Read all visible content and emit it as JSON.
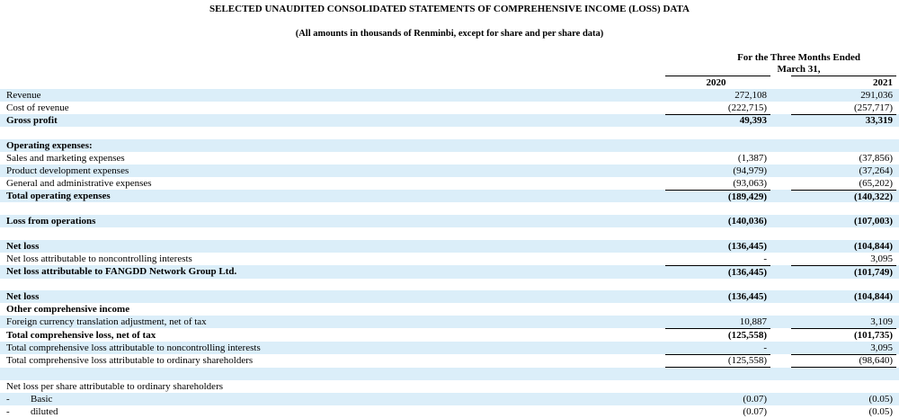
{
  "header": {
    "title": "SELECTED UNAUDITED CONSOLIDATED STATEMENTS OF COMPREHENSIVE INCOME (LOSS) DATA",
    "subtitle": "(All amounts in thousands of Renminbi, except for share and per share data)",
    "period": "For the Three Months Ended March 31,",
    "years": [
      "2020",
      "2021"
    ]
  },
  "sections": [
    {
      "rows": [
        {
          "label": "Revenue",
          "values": [
            "272,108",
            "291,036"
          ]
        },
        {
          "label": "Cost of revenue",
          "values": [
            "(222,715)",
            "(257,717)"
          ],
          "underline": true
        },
        {
          "label": "Gross profit",
          "values": [
            "49,393",
            "33,319"
          ],
          "bold": true
        }
      ]
    },
    {
      "rows": [
        {
          "label": "Operating expenses:",
          "bold": true
        },
        {
          "label": "Sales and marketing expenses",
          "values": [
            "(1,387)",
            "(37,856)"
          ]
        },
        {
          "label": "Product development expenses",
          "values": [
            "(94,979)",
            "(37,264)"
          ]
        },
        {
          "label": "General and administrative expenses",
          "values": [
            "(93,063)",
            "(65,202)"
          ],
          "underline": true
        },
        {
          "label": "Total operating expenses",
          "values": [
            "(189,429)",
            "(140,322)"
          ],
          "bold": true
        }
      ]
    },
    {
      "rows": [
        {
          "label": "Loss from operations",
          "values": [
            "(140,036)",
            "(107,003)"
          ],
          "bold": true
        }
      ]
    },
    {
      "rows": [
        {
          "label": "Net loss",
          "values": [
            "(136,445)",
            "(104,844)"
          ],
          "bold": true
        },
        {
          "label": "Net loss attributable to noncontrolling interests",
          "values": [
            "-",
            "3,095"
          ],
          "underline": true
        },
        {
          "label": "Net loss attributable to FANGDD Network Group Ltd.",
          "values": [
            "(136,445)",
            "(101,749)"
          ],
          "bold": true
        }
      ]
    },
    {
      "rows": [
        {
          "label": "Net loss",
          "values": [
            "(136,445)",
            "(104,844)"
          ],
          "bold": true
        },
        {
          "label": "Other comprehensive income",
          "bold": true
        },
        {
          "label": "Foreign currency translation adjustment, net of tax",
          "values": [
            "10,887",
            "3,109"
          ],
          "underline": true
        },
        {
          "label": "Total comprehensive loss, net of tax",
          "values": [
            "(125,558)",
            "(101,735)"
          ],
          "bold": true
        },
        {
          "label": "Total comprehensive loss attributable to noncontrolling interests",
          "values": [
            "-",
            "3,095"
          ],
          "underline": true
        },
        {
          "label": "Total comprehensive loss attributable to ordinary shareholders",
          "values": [
            "(125,558)",
            "(98,640)"
          ],
          "underline": true
        }
      ]
    },
    {
      "rows": [
        {
          "label": "Net loss per share attributable to ordinary shareholders"
        },
        {
          "marker": "-",
          "label": "Basic",
          "values": [
            "(0.07)",
            "(0.05)"
          ]
        },
        {
          "marker": "-",
          "label": "diluted",
          "values": [
            "(0.07)",
            "(0.05)"
          ]
        }
      ]
    }
  ]
}
